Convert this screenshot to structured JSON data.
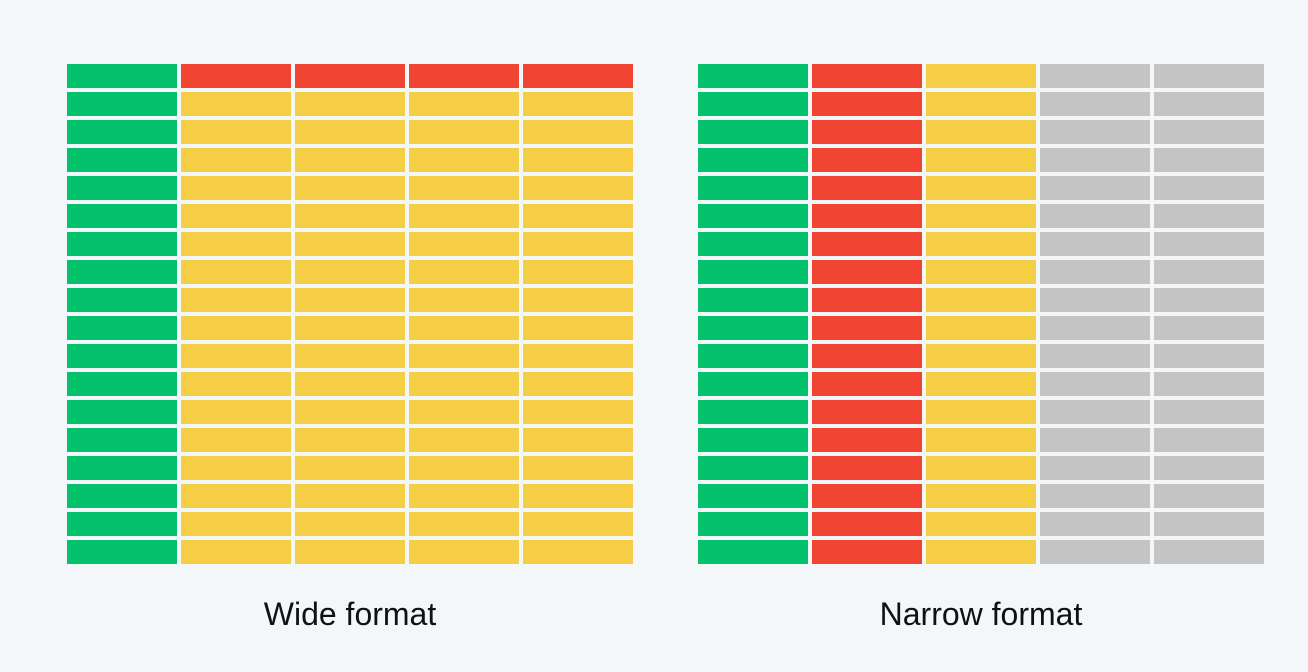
{
  "panels": {
    "wide": {
      "caption": "Wide format",
      "columns": 5,
      "rows": 18,
      "column_colors": [
        "green",
        "yellow",
        "yellow",
        "yellow",
        "yellow"
      ],
      "first_row_colors": [
        "green",
        "red",
        "red",
        "red",
        "red"
      ]
    },
    "narrow": {
      "caption": "Narrow format",
      "columns": 5,
      "rows": 18,
      "column_colors": [
        "green",
        "red",
        "yellow",
        "gray",
        "gray"
      ],
      "first_row_colors": [
        "green",
        "red",
        "yellow",
        "gray",
        "gray"
      ]
    }
  },
  "colors": {
    "green": "#05c16b",
    "red": "#f04533",
    "yellow": "#f5ce46",
    "gray": "#c4c4c4",
    "background": "#f4f7fa",
    "text": "#111111"
  }
}
